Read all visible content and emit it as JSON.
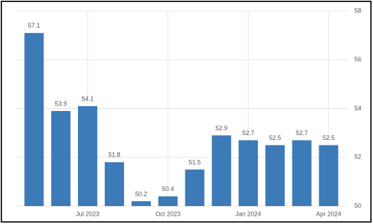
{
  "chart_data": {
    "type": "bar",
    "categories": [
      null,
      null,
      "Jul 2023",
      null,
      null,
      "Oct 2023",
      null,
      null,
      "Jan 2024",
      null,
      null,
      "Apr 2024"
    ],
    "values": [
      57.1,
      53.9,
      54.1,
      51.8,
      50.2,
      50.4,
      51.5,
      52.9,
      52.7,
      52.5,
      52.7,
      52.5
    ],
    "color": "#3d7ab8",
    "ylim": [
      50,
      58
    ],
    "yticks": [
      50,
      52,
      54,
      56,
      58
    ],
    "grid": true
  }
}
